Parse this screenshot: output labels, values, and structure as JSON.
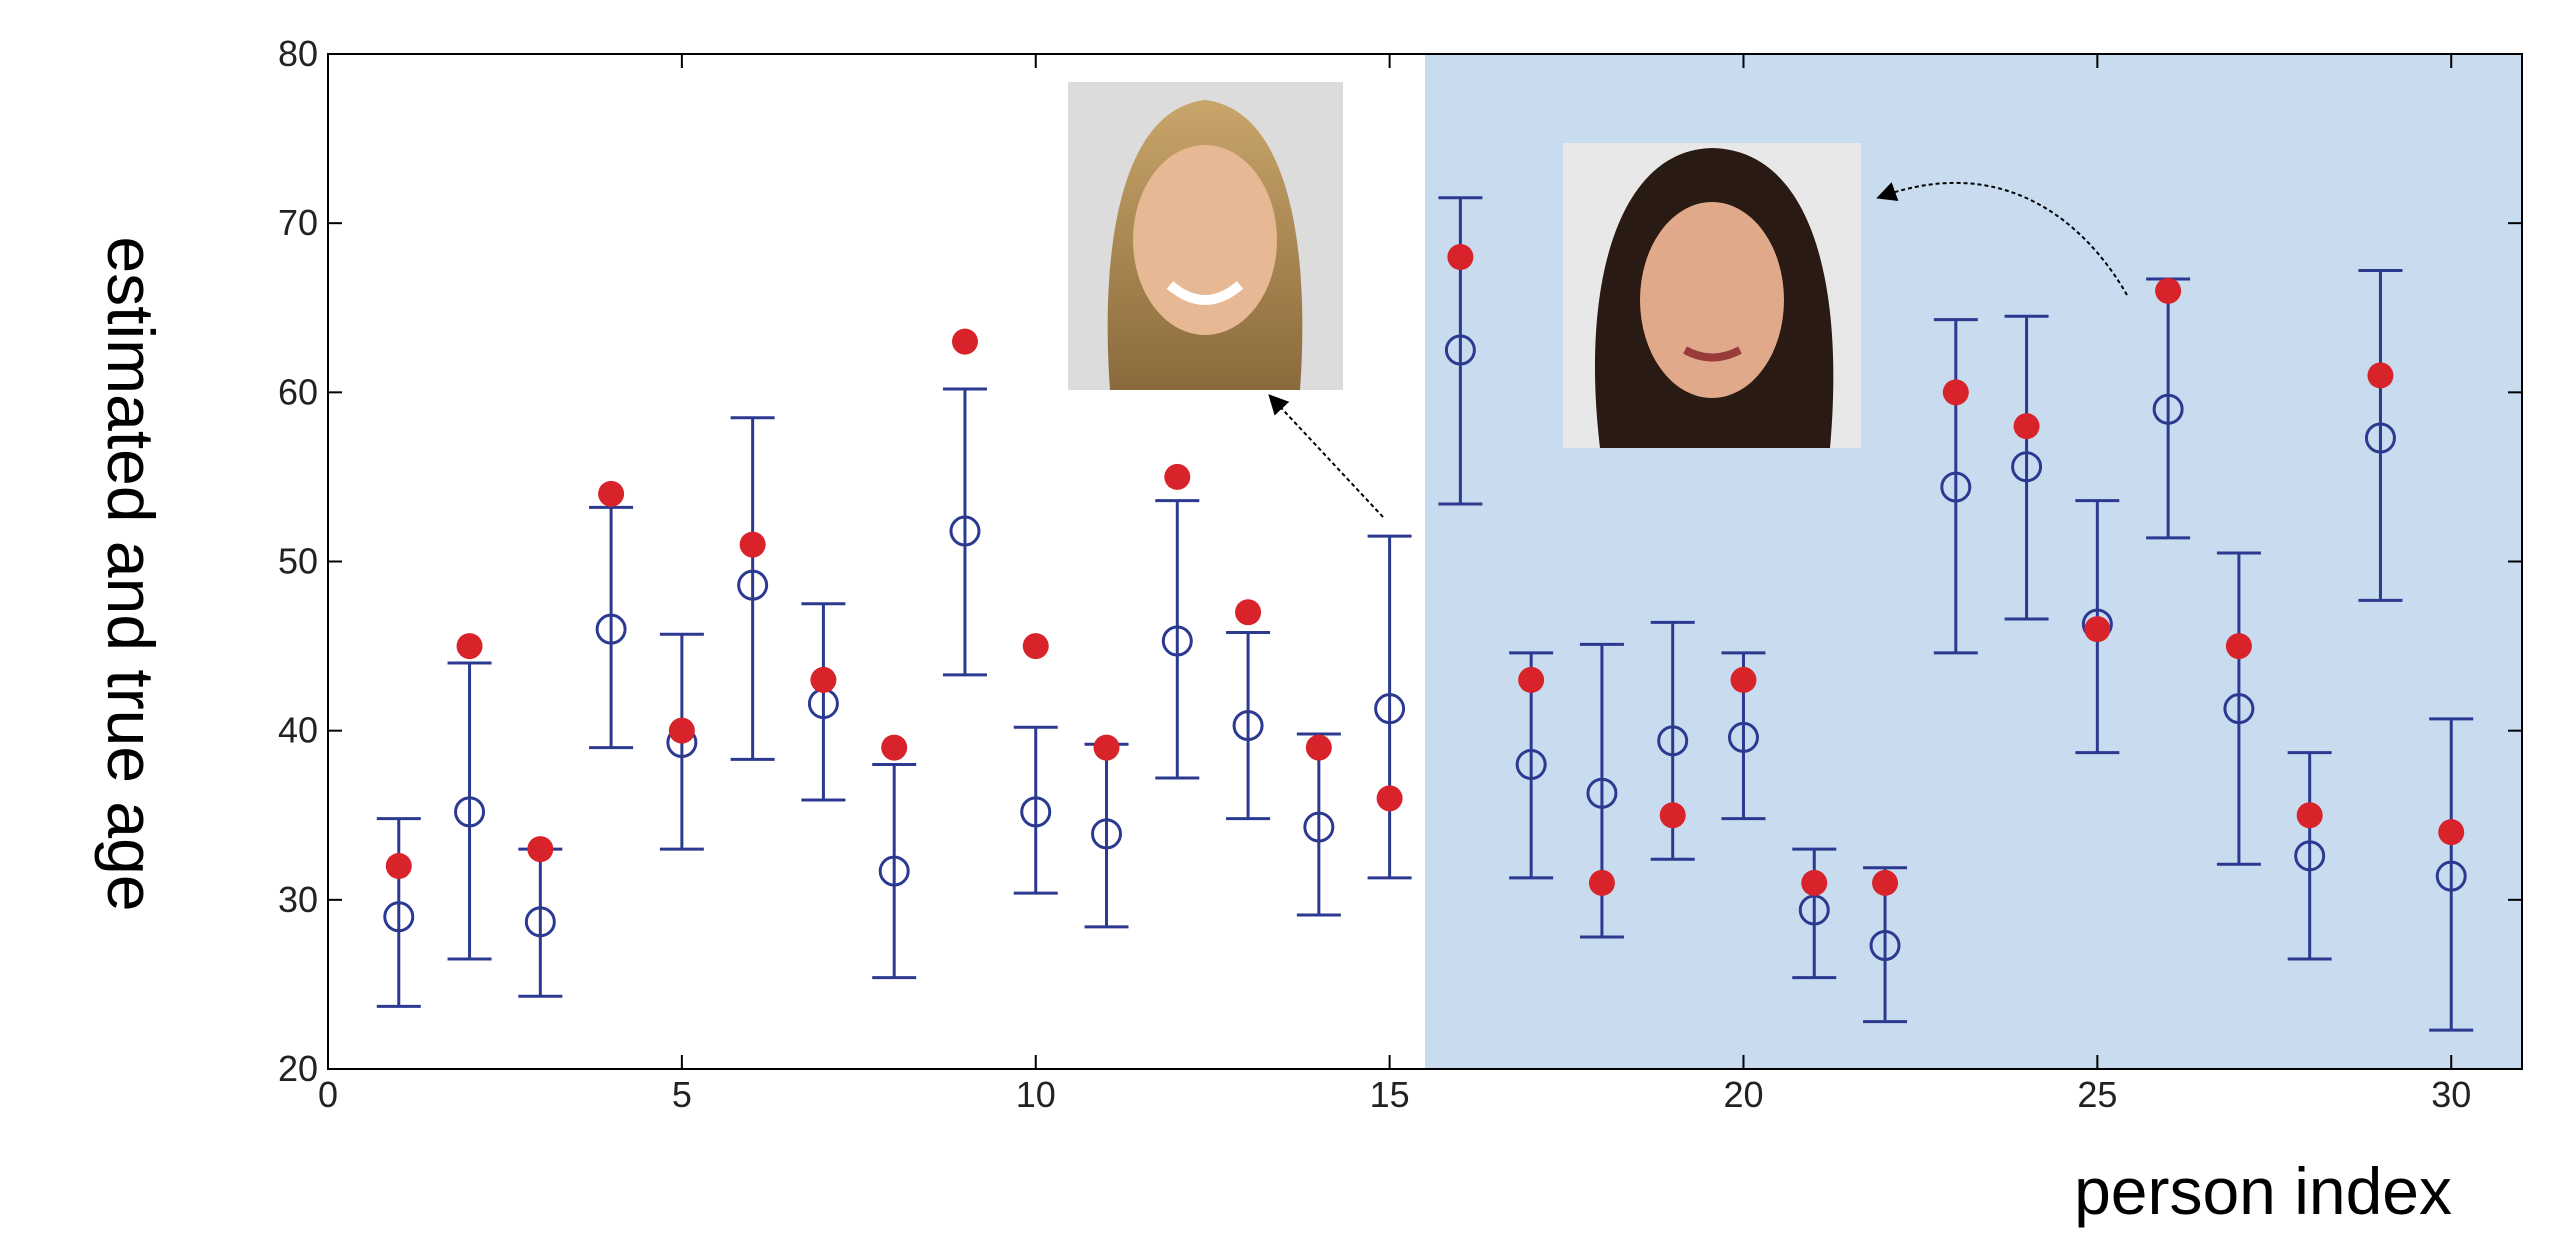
{
  "chart_data": {
    "type": "errorbar",
    "x_label": "person index",
    "y_label": "estimated and true age",
    "x": [
      1,
      2,
      3,
      4,
      5,
      6,
      7,
      8,
      9,
      10,
      11,
      12,
      13,
      14,
      15,
      16,
      17,
      18,
      19,
      20,
      21,
      22,
      23,
      24,
      25,
      26,
      27,
      28,
      29,
      30
    ],
    "estimated": [
      29,
      35.2,
      28.7,
      46,
      39.3,
      48.6,
      41.6,
      31.7,
      51.8,
      35.2,
      33.9,
      45.3,
      40.3,
      34.3,
      41.3,
      62.5,
      38,
      36.3,
      39.4,
      39.6,
      29.4,
      27.3,
      54.4,
      55.6,
      46.3,
      59,
      41.3,
      32.6,
      57.3,
      31.4
    ],
    "lower": [
      23.7,
      26.5,
      24.3,
      39,
      33,
      38.3,
      35.9,
      25.4,
      43.3,
      30.4,
      28.4,
      37.2,
      34.8,
      29.1,
      31.3,
      53.4,
      31.3,
      27.8,
      32.4,
      34.8,
      25.4,
      22.8,
      44.6,
      46.6,
      38.7,
      51.4,
      32.1,
      26.5,
      47.7,
      22.3
    ],
    "upper": [
      34.8,
      44,
      33,
      53.2,
      45.7,
      58.5,
      47.5,
      38,
      60.2,
      40.2,
      39.2,
      53.6,
      45.8,
      39.8,
      51.5,
      71.5,
      44.6,
      45.1,
      46.4,
      44.6,
      33,
      31.9,
      64.3,
      64.5,
      53.6,
      66.7,
      50.5,
      38.7,
      67.2,
      40.7
    ],
    "true_values": [
      32,
      45,
      33,
      54,
      40,
      51,
      43,
      39,
      63,
      45,
      39,
      55,
      47,
      39,
      36,
      68,
      43,
      31,
      35,
      43,
      31,
      31,
      60,
      58,
      46,
      66,
      45,
      35,
      61,
      34
    ],
    "estimated_color": "#2b3990",
    "true_color": "#d8232a",
    "highlight_xrange": [
      15.5,
      31
    ],
    "highlight_color": "#c9dcef",
    "xlim": [
      0,
      31
    ],
    "ylim": [
      20,
      80
    ],
    "xticks": [
      0,
      5,
      10,
      15,
      20,
      25,
      30
    ],
    "yticks": [
      20,
      30,
      40,
      50,
      60,
      70,
      80
    ]
  }
}
